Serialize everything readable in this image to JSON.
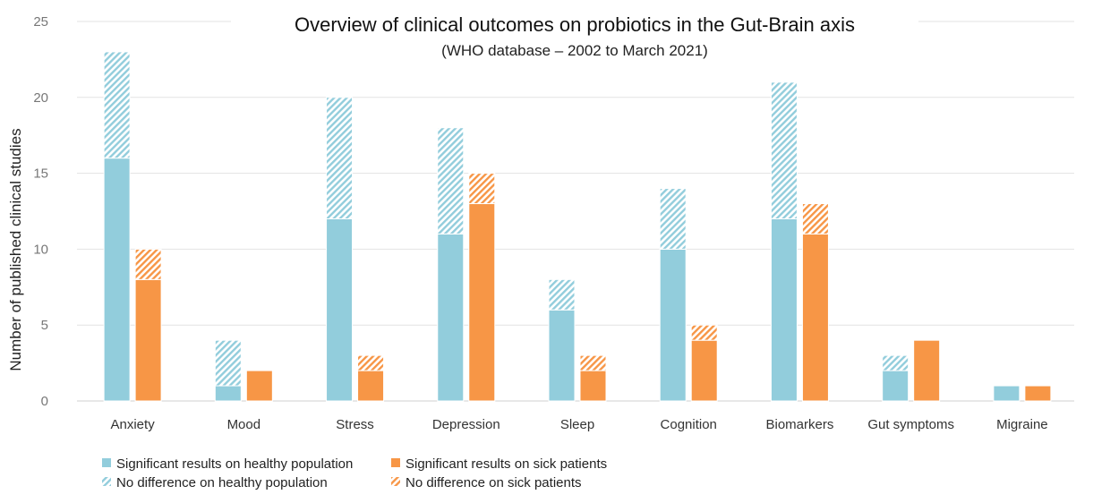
{
  "chart_data": {
    "type": "bar",
    "title": "Overview of clinical outcomes on probiotics in the Gut-Brain axis",
    "subtitle": "(WHO database – 2002 to March 2021)",
    "xlabel": "",
    "ylabel": "Number of published clinical studies",
    "ylim": [
      0,
      25
    ],
    "yticks": [
      0,
      5,
      10,
      15,
      20,
      25
    ],
    "grid": true,
    "legend_position": "bottom-left",
    "categories": [
      "Anxiety",
      "Mood",
      "Stress",
      "Depression",
      "Sleep",
      "Cognition",
      "Biomarkers",
      "Gut symptoms",
      "Migraine"
    ],
    "groups": [
      {
        "group": "healthy",
        "series": [
          {
            "name": "Significant results on healthy population",
            "values": [
              16,
              1,
              12,
              11,
              6,
              10,
              12,
              2,
              1
            ],
            "color": "#92CDDC",
            "pattern": "solid"
          },
          {
            "name": "No difference on healthy population",
            "values": [
              7,
              3,
              8,
              7,
              2,
              4,
              9,
              1,
              0
            ],
            "color": "#92CDDC",
            "pattern": "hatched"
          }
        ]
      },
      {
        "group": "sick",
        "series": [
          {
            "name": "Significant results on sick patients",
            "values": [
              8,
              2,
              2,
              13,
              2,
              4,
              11,
              4,
              1
            ],
            "color": "#F79646",
            "pattern": "solid"
          },
          {
            "name": "No difference on sick patients",
            "values": [
              2,
              0,
              1,
              2,
              1,
              1,
              2,
              0,
              0
            ],
            "color": "#F79646",
            "pattern": "hatched"
          }
        ]
      }
    ]
  }
}
